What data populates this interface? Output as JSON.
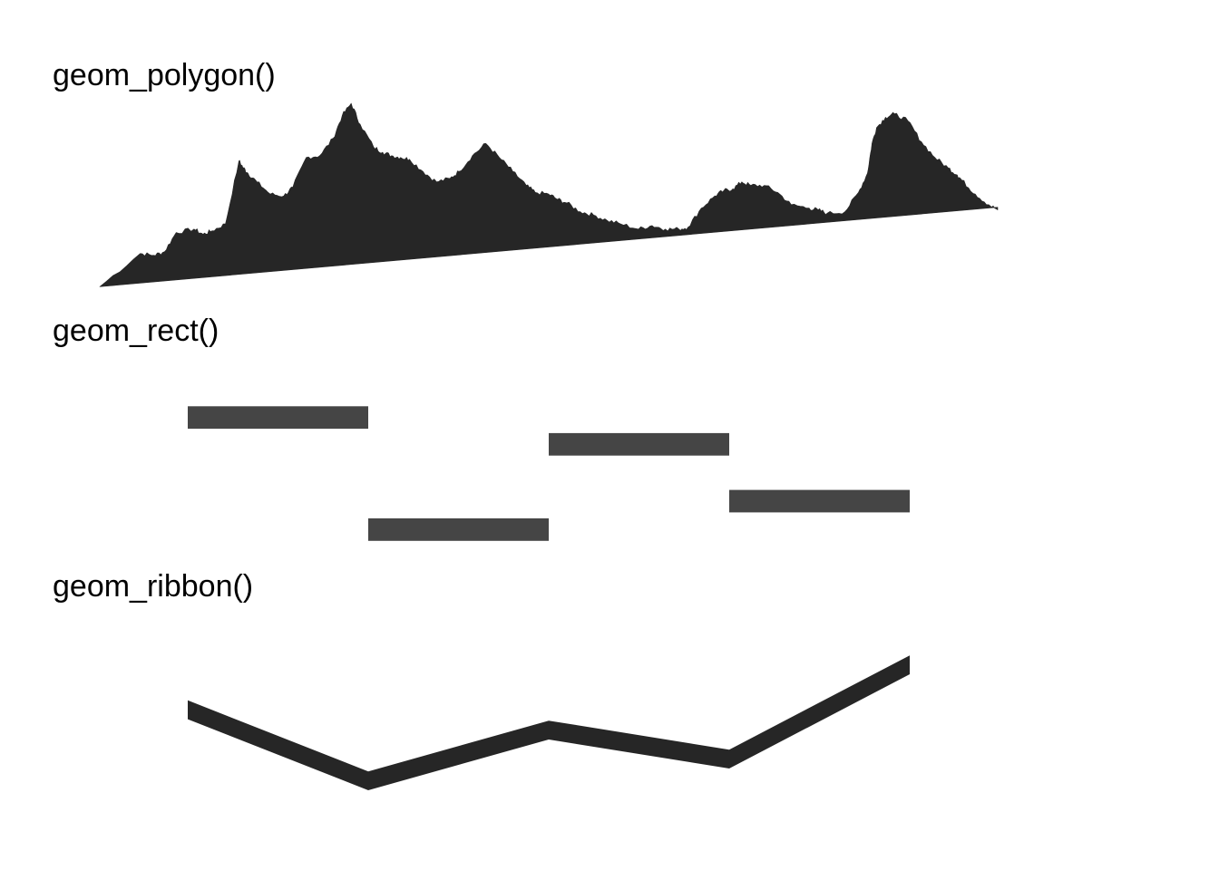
{
  "chart_data": [
    {
      "type": "area",
      "title": "geom_polygon()",
      "xlim": [
        0,
        1
      ],
      "ylim": [
        -0.05,
        1.05
      ],
      "baseline": {
        "y_start": 0.0,
        "y_end": 0.455
      },
      "x": [
        0,
        0.045,
        0.06,
        0.072,
        0.085,
        0.105,
        0.115,
        0.125,
        0.14,
        0.155,
        0.16,
        0.165,
        0.175,
        0.19,
        0.205,
        0.215,
        0.23,
        0.245,
        0.26,
        0.27,
        0.28,
        0.29,
        0.305,
        0.315,
        0.325,
        0.335,
        0.345,
        0.36,
        0.375,
        0.39,
        0.4,
        0.415,
        0.43,
        0.445,
        0.46,
        0.475,
        0.485,
        0.5,
        0.51,
        0.52,
        0.535,
        0.55,
        0.565,
        0.58,
        0.6,
        0.615,
        0.63,
        0.645,
        0.655,
        0.67,
        0.685,
        0.695,
        0.705,
        0.715,
        0.725,
        0.74,
        0.755,
        0.77,
        0.79,
        0.8,
        0.81,
        0.83,
        0.845,
        0.855,
        0.86,
        0.865,
        0.875,
        0.885,
        0.9,
        0.915,
        0.93,
        0.945,
        0.955,
        0.96,
        0.975,
        0.99,
        1.0
      ],
      "y": [
        0,
        0.19,
        0.18,
        0.2,
        0.31,
        0.33,
        0.3,
        0.32,
        0.36,
        0.72,
        0.68,
        0.65,
        0.6,
        0.53,
        0.52,
        0.57,
        0.74,
        0.75,
        0.85,
        0.98,
        1.05,
        0.93,
        0.8,
        0.77,
        0.75,
        0.74,
        0.73,
        0.66,
        0.6,
        0.62,
        0.66,
        0.75,
        0.82,
        0.74,
        0.66,
        0.58,
        0.54,
        0.53,
        0.5,
        0.48,
        0.43,
        0.41,
        0.38,
        0.36,
        0.33,
        0.35,
        0.33,
        0.33,
        0.34,
        0.45,
        0.52,
        0.55,
        0.56,
        0.6,
        0.58,
        0.58,
        0.54,
        0.47,
        0.45,
        0.44,
        0.42,
        0.43,
        0.54,
        0.65,
        0.82,
        0.91,
        0.97,
        0.99,
        0.95,
        0.83,
        0.74,
        0.68,
        0.64,
        0.61,
        0.53,
        0.47,
        0.44
      ],
      "color": "#262626"
    },
    {
      "type": "bar",
      "title": "geom_rect()",
      "xlim": [
        0,
        4
      ],
      "ylim": [
        0,
        1
      ],
      "rects": [
        {
          "xmin": 0,
          "xmax": 1,
          "ymin": 0.8,
          "ymax": 0.95
        },
        {
          "xmin": 1,
          "xmax": 2,
          "ymin": 0.05,
          "ymax": 0.2
        },
        {
          "xmin": 2,
          "xmax": 3,
          "ymin": 0.62,
          "ymax": 0.77
        },
        {
          "xmin": 3,
          "xmax": 4,
          "ymin": 0.24,
          "ymax": 0.39
        }
      ],
      "color": "#454545"
    },
    {
      "type": "area",
      "title": "geom_ribbon()",
      "xlim": [
        0,
        4
      ],
      "ylim": [
        0,
        1
      ],
      "x": [
        0,
        1,
        2,
        3,
        4
      ],
      "ymin": [
        0.54,
        0.05,
        0.4,
        0.2,
        0.85
      ],
      "ymax": [
        0.67,
        0.18,
        0.53,
        0.33,
        0.98
      ],
      "color": "#262626"
    }
  ]
}
